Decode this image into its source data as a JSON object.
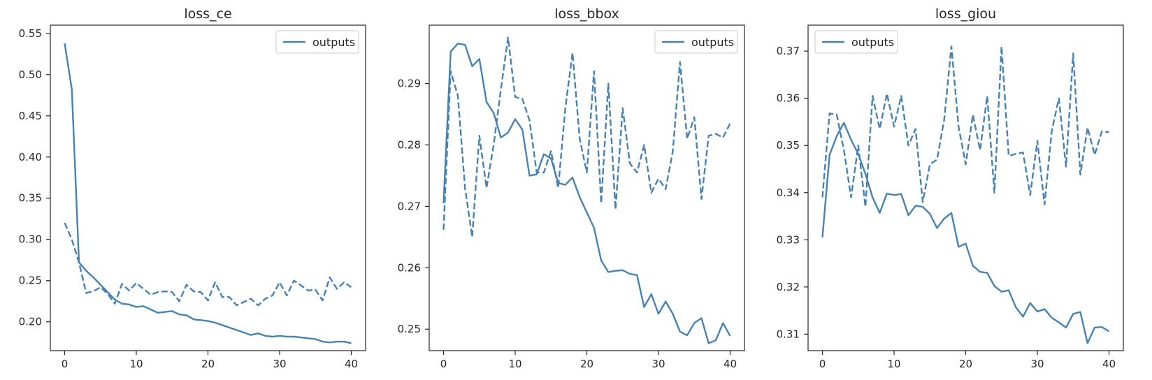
{
  "chart_data": [
    {
      "type": "line",
      "title": "loss_ce",
      "xlabel": "",
      "ylabel": "",
      "xlim": [
        -2,
        42
      ],
      "ylim": [
        0.165,
        0.56
      ],
      "xticks": [
        0,
        10,
        20,
        30,
        40
      ],
      "yticks": [
        0.2,
        0.25,
        0.3,
        0.35,
        0.4,
        0.45,
        0.5,
        0.55
      ],
      "ytick_labels": [
        "0.20",
        "0.25",
        "0.30",
        "0.35",
        "0.40",
        "0.45",
        "0.50",
        "0.55"
      ],
      "legend_placement": "upper right",
      "legend": [
        "outputs"
      ],
      "grid": false,
      "series": [
        {
          "name": "outputs",
          "style": "solid",
          "values": [
            0.538,
            0.482,
            0.272,
            0.262,
            0.254,
            0.245,
            0.236,
            0.227,
            0.222,
            0.221,
            0.218,
            0.219,
            0.215,
            0.211,
            0.212,
            0.213,
            0.209,
            0.208,
            0.203,
            0.202,
            0.201,
            0.199,
            0.196,
            0.193,
            0.19,
            0.187,
            0.184,
            0.186,
            0.183,
            0.182,
            0.183,
            0.182,
            0.182,
            0.181,
            0.18,
            0.179,
            0.176,
            0.175,
            0.176,
            0.176,
            0.174
          ]
        },
        {
          "style": "dashed",
          "values": [
            0.32,
            0.3,
            0.272,
            0.235,
            0.237,
            0.242,
            0.234,
            0.222,
            0.246,
            0.238,
            0.247,
            0.24,
            0.233,
            0.236,
            0.237,
            0.236,
            0.225,
            0.245,
            0.237,
            0.236,
            0.226,
            0.248,
            0.23,
            0.23,
            0.22,
            0.224,
            0.228,
            0.22,
            0.228,
            0.232,
            0.248,
            0.232,
            0.25,
            0.244,
            0.238,
            0.239,
            0.226,
            0.254,
            0.24,
            0.248,
            0.242
          ]
        }
      ]
    },
    {
      "type": "line",
      "title": "loss_bbox",
      "xlabel": "",
      "ylabel": "",
      "xlim": [
        -2,
        42
      ],
      "ylim": [
        0.2465,
        0.2995
      ],
      "xticks": [
        0,
        10,
        20,
        30,
        40
      ],
      "yticks": [
        0.25,
        0.26,
        0.27,
        0.28,
        0.29
      ],
      "ytick_labels": [
        "0.25",
        "0.26",
        "0.27",
        "0.28",
        "0.29"
      ],
      "legend_placement": "upper right",
      "legend": [
        "outputs"
      ],
      "grid": false,
      "series": [
        {
          "name": "outputs",
          "style": "solid",
          "values": [
            0.2705,
            0.2952,
            0.2965,
            0.2963,
            0.2928,
            0.294,
            0.287,
            0.2852,
            0.2812,
            0.282,
            0.2842,
            0.2825,
            0.275,
            0.2752,
            0.2785,
            0.2778,
            0.2738,
            0.2735,
            0.2747,
            0.2715,
            0.269,
            0.2665,
            0.2612,
            0.2593,
            0.2595,
            0.2596,
            0.259,
            0.2588,
            0.2536,
            0.2557,
            0.2525,
            0.2545,
            0.2525,
            0.2496,
            0.249,
            0.251,
            0.2518,
            0.2477,
            0.2482,
            0.251,
            0.2489
          ]
        },
        {
          "style": "dashed",
          "values": [
            0.2662,
            0.292,
            0.288,
            0.273,
            0.265,
            0.2815,
            0.273,
            0.28,
            0.289,
            0.2975,
            0.2878,
            0.2875,
            0.284,
            0.2755,
            0.2755,
            0.279,
            0.273,
            0.286,
            0.295,
            0.281,
            0.2755,
            0.292,
            0.2705,
            0.29,
            0.2695,
            0.286,
            0.277,
            0.2755,
            0.28,
            0.2722,
            0.2745,
            0.2728,
            0.279,
            0.2935,
            0.281,
            0.2845,
            0.2712,
            0.2815,
            0.2818,
            0.2812,
            0.2835
          ]
        }
      ]
    },
    {
      "type": "line",
      "title": "loss_giou",
      "xlabel": "",
      "ylabel": "",
      "xlim": [
        -2,
        42
      ],
      "ylim": [
        0.3065,
        0.3755
      ],
      "xticks": [
        0,
        10,
        20,
        30,
        40
      ],
      "yticks": [
        0.31,
        0.32,
        0.33,
        0.34,
        0.35,
        0.36,
        0.37
      ],
      "ytick_labels": [
        "0.31",
        "0.32",
        "0.33",
        "0.34",
        "0.35",
        "0.36",
        "0.37"
      ],
      "legend_placement": "upper left",
      "legend": [
        "outputs"
      ],
      "grid": false,
      "series": [
        {
          "name": "outputs",
          "style": "solid",
          "values": [
            0.3305,
            0.348,
            0.352,
            0.3548,
            0.3512,
            0.3482,
            0.344,
            0.339,
            0.3357,
            0.3398,
            0.3395,
            0.3397,
            0.3352,
            0.3372,
            0.337,
            0.3355,
            0.3325,
            0.3345,
            0.3357,
            0.3285,
            0.3292,
            0.3245,
            0.3232,
            0.323,
            0.3202,
            0.319,
            0.3193,
            0.3157,
            0.3137,
            0.3166,
            0.3148,
            0.3153,
            0.3135,
            0.3125,
            0.3114,
            0.3143,
            0.3147,
            0.3081,
            0.3114,
            0.3115,
            0.3106
          ]
        },
        {
          "style": "dashed",
          "values": [
            0.339,
            0.3568,
            0.3565,
            0.349,
            0.339,
            0.35,
            0.337,
            0.3605,
            0.3535,
            0.361,
            0.354,
            0.3605,
            0.35,
            0.3535,
            0.338,
            0.346,
            0.347,
            0.3555,
            0.371,
            0.354,
            0.346,
            0.3565,
            0.349,
            0.3605,
            0.34,
            0.371,
            0.3478,
            0.3482,
            0.3485,
            0.3395,
            0.351,
            0.3375,
            0.353,
            0.36,
            0.3455,
            0.3695,
            0.3438,
            0.3538,
            0.348,
            0.353,
            0.3528
          ]
        }
      ]
    }
  ],
  "colors": {
    "line": "#4682b4",
    "axis": "#262626",
    "legend_border": "#cccccc"
  }
}
